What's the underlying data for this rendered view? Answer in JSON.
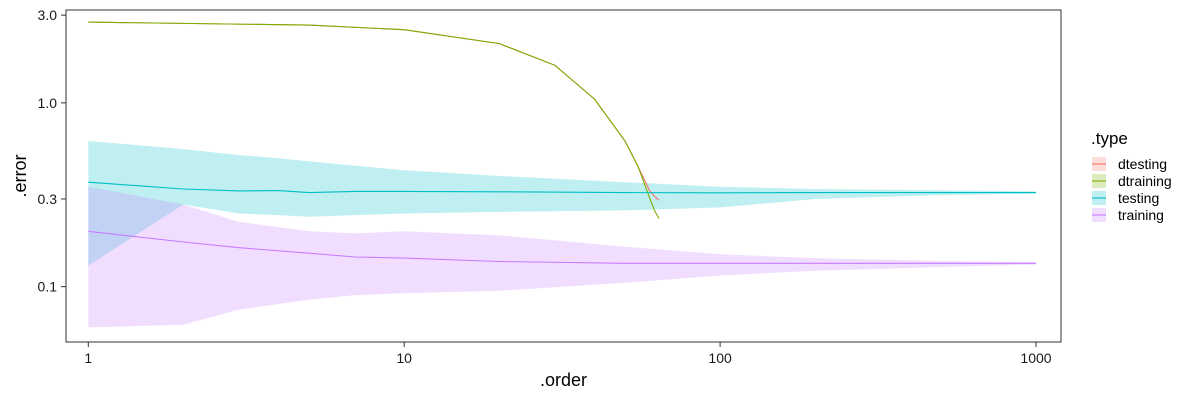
{
  "chart_data": {
    "type": "line",
    "x_scale": "log10",
    "y_scale": "log10",
    "xlabel": ".order",
    "ylabel": ".error",
    "xlim": [
      0.85,
      1200
    ],
    "ylim": [
      0.05,
      3.2
    ],
    "x_ticks": [
      1,
      10,
      100,
      1000
    ],
    "x_tick_labels": [
      "1",
      "10",
      "100",
      "1000"
    ],
    "y_ticks": [
      0.1,
      0.3,
      1.0,
      3.0
    ],
    "y_tick_labels": [
      "0.1",
      "0.3",
      "1.0",
      "3.0"
    ],
    "grid": false,
    "legend": {
      "title": ".type",
      "position": "right",
      "entries": [
        "dtesting",
        "dtraining",
        "testing",
        "training"
      ]
    },
    "series": [
      {
        "name": "dtesting",
        "color": "#F8766D",
        "x": [
          1,
          5,
          10,
          20,
          30,
          40,
          50,
          55,
          60,
          62,
          64
        ],
        "y": [
          2.75,
          2.65,
          2.5,
          2.1,
          1.6,
          1.05,
          0.62,
          0.45,
          0.33,
          0.31,
          0.295
        ]
      },
      {
        "name": "dtraining",
        "color": "#7CAE00",
        "x": [
          1,
          5,
          10,
          20,
          30,
          40,
          50,
          55,
          60,
          62,
          64
        ],
        "y": [
          2.75,
          2.65,
          2.5,
          2.1,
          1.6,
          1.05,
          0.62,
          0.45,
          0.3,
          0.26,
          0.235
        ]
      },
      {
        "name": "testing",
        "color": "#00BFC4",
        "x": [
          1,
          2,
          3,
          4,
          5,
          7,
          10,
          20,
          50,
          100,
          200,
          500,
          1000
        ],
        "y": [
          0.37,
          0.34,
          0.332,
          0.333,
          0.325,
          0.33,
          0.33,
          0.328,
          0.325,
          0.324,
          0.325,
          0.325,
          0.325
        ],
        "band_lower": [
          0.13,
          0.28,
          0.25,
          0.245,
          0.24,
          0.245,
          0.25,
          0.255,
          0.26,
          0.27,
          0.3,
          0.315,
          0.32
        ],
        "band_upper": [
          0.62,
          0.56,
          0.52,
          0.5,
          0.48,
          0.455,
          0.43,
          0.4,
          0.37,
          0.35,
          0.34,
          0.335,
          0.33
        ]
      },
      {
        "name": "training",
        "color": "#C77CFF",
        "x": [
          1,
          2,
          3,
          5,
          7,
          10,
          20,
          50,
          100,
          200,
          500,
          1000
        ],
        "y": [
          0.2,
          0.175,
          0.163,
          0.152,
          0.145,
          0.143,
          0.137,
          0.134,
          0.134,
          0.134,
          0.134,
          0.134
        ],
        "band_lower": [
          0.06,
          0.062,
          0.075,
          0.085,
          0.09,
          0.092,
          0.095,
          0.105,
          0.115,
          0.122,
          0.128,
          0.132
        ],
        "band_upper": [
          0.35,
          0.28,
          0.225,
          0.2,
          0.195,
          0.2,
          0.19,
          0.165,
          0.15,
          0.143,
          0.138,
          0.136
        ]
      }
    ]
  }
}
